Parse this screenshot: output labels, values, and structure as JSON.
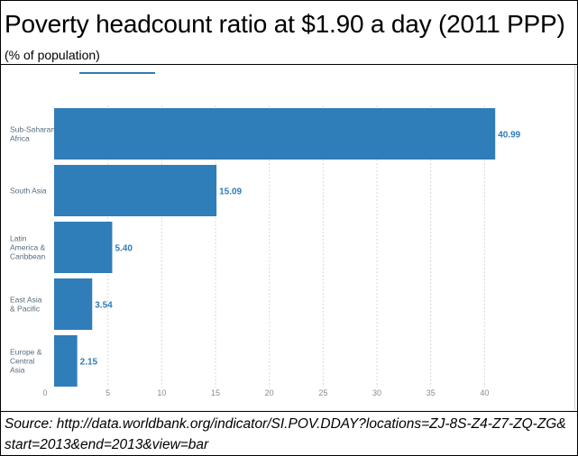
{
  "header": {
    "title": "Poverty headcount ratio at $1.90 a day (2011 PPP)",
    "subtitle": "(% of population)"
  },
  "footer": {
    "source": "Source: http://data.worldbank.org/indicator/SI.POV.DDAY?locations=ZJ-8S-Z4-Z7-ZQ-ZG&start=2013&end=2013&view=bar"
  },
  "colors": {
    "bar": "#2f7db9",
    "value_label": "#2f7db9",
    "category_label": "#546b7a",
    "grid": "#d9d9d9",
    "tick_label": "#8a8a8a"
  },
  "chart_data": {
    "type": "bar",
    "orientation": "horizontal",
    "categories": [
      [
        "Sub-Saharan",
        "Africa"
      ],
      [
        "South Asia"
      ],
      [
        "Latin",
        "America &",
        "Caribbean"
      ],
      [
        "East Asia",
        "& Pacific"
      ],
      [
        "Europe &",
        "Central",
        "Asia"
      ]
    ],
    "values": [
      40.99,
      15.09,
      5.4,
      3.54,
      2.15
    ],
    "value_labels": [
      "40.99",
      "15.09",
      "5.40",
      "3.54",
      "2.15"
    ],
    "xlim": [
      0,
      45
    ],
    "x_ticks": [
      0,
      5,
      10,
      15,
      20,
      25,
      30,
      35,
      40
    ],
    "grid": "vertical dashed",
    "legend": "none"
  }
}
